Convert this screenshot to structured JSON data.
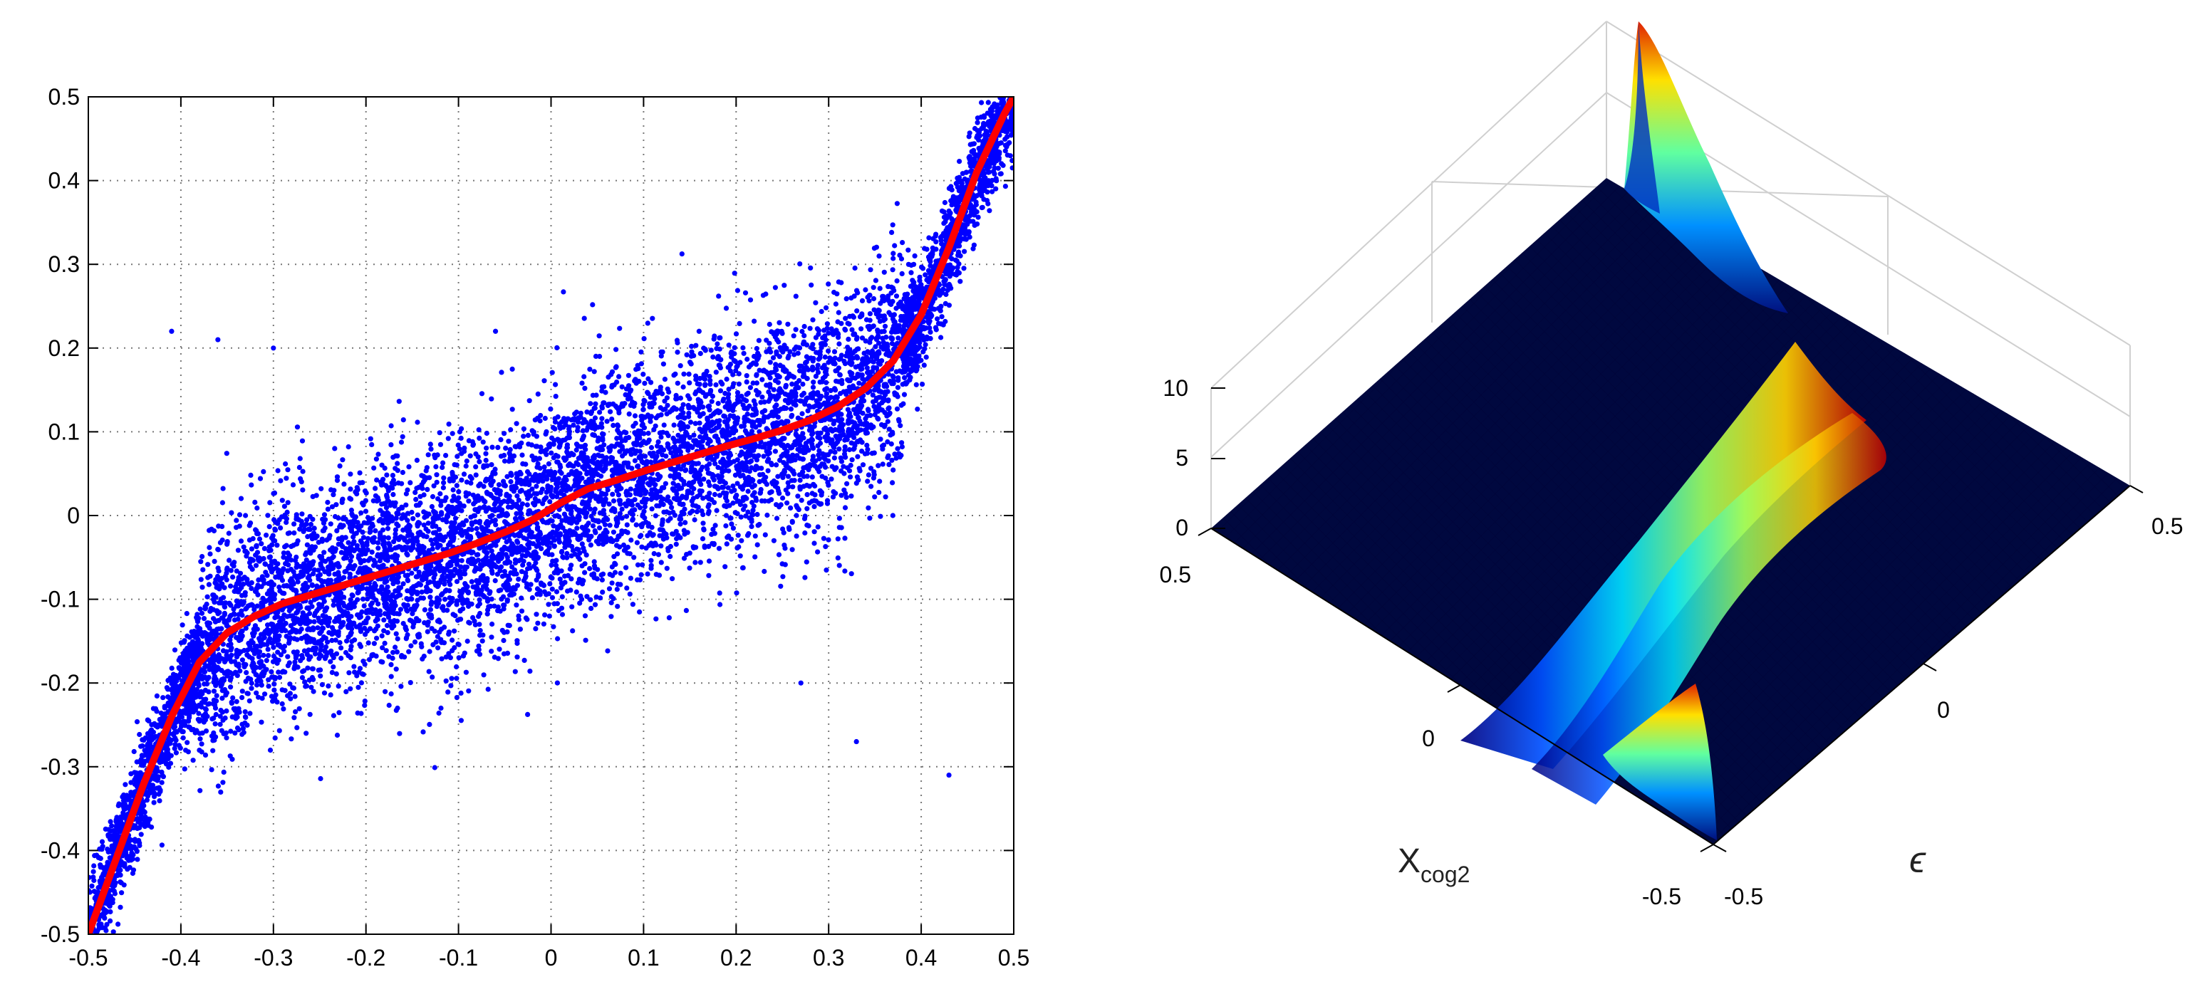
{
  "chart_data": [
    {
      "type": "scatter",
      "title": "",
      "xlabel": "",
      "ylabel": "",
      "xlim": [
        -0.5,
        0.5
      ],
      "ylim": [
        -0.5,
        0.5
      ],
      "xticks": [
        "-0.5",
        "-0.4",
        "-0.3",
        "-0.2",
        "-0.1",
        "0",
        "0.1",
        "0.2",
        "0.3",
        "0.4",
        "0.5"
      ],
      "yticks": [
        "-0.5",
        "-0.4",
        "-0.3",
        "-0.2",
        "-0.1",
        "0",
        "0.1",
        "0.2",
        "0.3",
        "0.4",
        "0.5"
      ],
      "grid": true,
      "legend": "none",
      "colors": {
        "scatter": "#0000ff",
        "fit_line": "#ff0000"
      },
      "series": [
        {
          "kind": "scatter-points",
          "point_count": 9000,
          "description_trend": "dense cloud following the red curve, spread about ±0.12 in y in the central region",
          "outliers": [
            {
              "x": -0.41,
              "y": 0.22
            },
            {
              "x": -0.36,
              "y": 0.21
            },
            {
              "x": -0.3,
              "y": 0.2
            },
            {
              "x": -0.06,
              "y": 0.22
            },
            {
              "x": 0.16,
              "y": 0.22
            },
            {
              "x": 0.33,
              "y": -0.27
            },
            {
              "x": 0.43,
              "y": -0.31
            },
            {
              "x": 0.27,
              "y": -0.2
            }
          ]
        },
        {
          "kind": "fit-line",
          "x": [
            -0.5,
            -0.47,
            -0.44,
            -0.41,
            -0.38,
            -0.35,
            -0.32,
            -0.29,
            -0.26,
            -0.23,
            -0.2,
            -0.17,
            -0.14,
            -0.11,
            -0.08,
            -0.05,
            -0.02,
            0.01,
            0.04,
            0.07,
            0.1,
            0.13,
            0.16,
            0.19,
            0.22,
            0.25,
            0.28,
            0.31,
            0.34,
            0.37,
            0.4,
            0.43,
            0.46,
            0.49,
            0.5
          ],
          "y": [
            -0.5,
            -0.41,
            -0.32,
            -0.24,
            -0.175,
            -0.14,
            -0.12,
            -0.105,
            -0.095,
            -0.085,
            -0.075,
            -0.065,
            -0.055,
            -0.045,
            -0.033,
            -0.02,
            -0.005,
            0.015,
            0.032,
            0.042,
            0.053,
            0.063,
            0.073,
            0.083,
            0.092,
            0.102,
            0.114,
            0.13,
            0.152,
            0.185,
            0.24,
            0.32,
            0.41,
            0.48,
            0.5
          ]
        }
      ]
    },
    {
      "type": "surface",
      "title": "",
      "xlabel": "X",
      "xlabel_sub": "cog2",
      "ylabel": "ϵ",
      "zlabel": "",
      "xlim": [
        -0.5,
        0.5
      ],
      "ylim": [
        -0.5,
        0.5
      ],
      "zlim": [
        0,
        10
      ],
      "xticks": [
        "0.5",
        "0",
        "-0.5"
      ],
      "yticks": [
        "-0.5",
        "0",
        "0.5"
      ],
      "zticks": [
        "0",
        "5",
        "10"
      ],
      "colormap": "jet",
      "description": "density surface of epsilon vs X_cog2; a sharp ridge near ϵ = -0.5 at X_cog2 = -0.5 and near ϵ = 0.5 at X_cog2 = 0.5, lower ridges through the middle",
      "peak_z": 10
    }
  ]
}
